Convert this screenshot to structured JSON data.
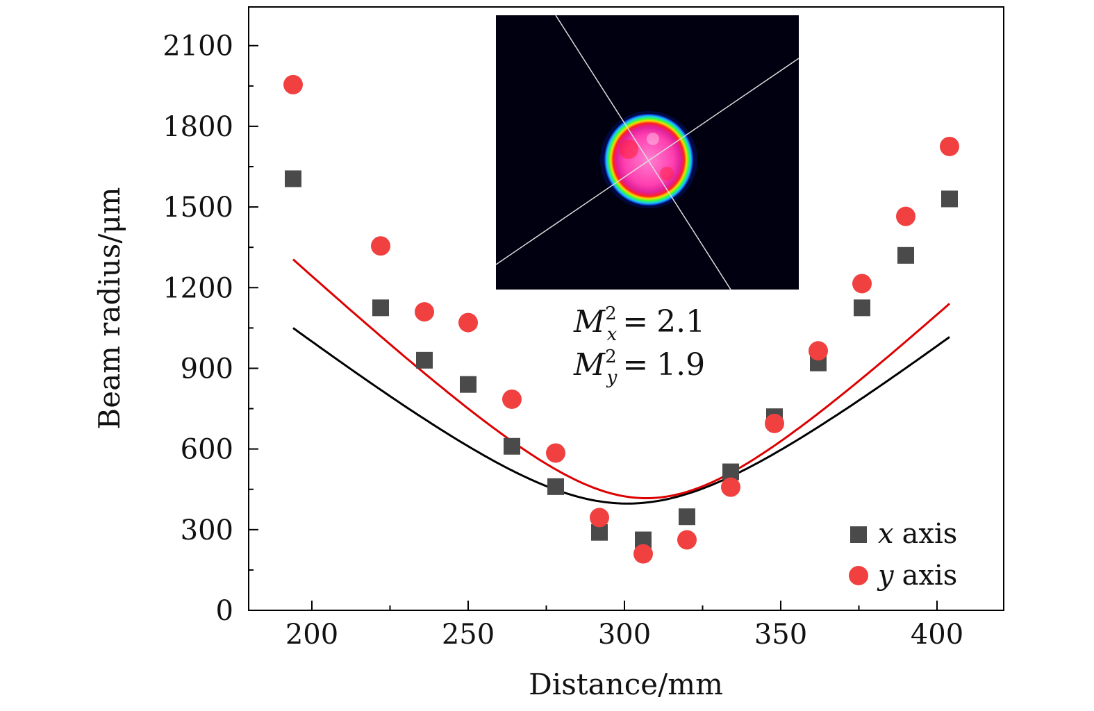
{
  "chart_data": {
    "type": "scatter",
    "xlabel": "Distance/mm",
    "ylabel": "Beam radius/μm",
    "xlim": [
      180,
      420
    ],
    "ylim": [
      0,
      2200
    ],
    "xticks": [
      200,
      250,
      300,
      350,
      400
    ],
    "yticks": [
      0,
      300,
      600,
      900,
      1200,
      1500,
      1800,
      2100
    ],
    "legend_position": "bottom-right",
    "series": [
      {
        "name": "x axis",
        "axis_letter": "x",
        "axis_word": "axis",
        "marker": "square",
        "color": "#4a4a4a",
        "x": [
          194,
          222,
          236,
          250,
          264,
          278,
          292,
          306,
          320,
          334,
          348,
          362,
          376,
          390,
          404
        ],
        "y": [
          1605,
          1125,
          930,
          840,
          610,
          460,
          290,
          262,
          348,
          515,
          720,
          920,
          1125,
          1320,
          1530
        ],
        "fit": {
          "color": "#000000",
          "w0": 397,
          "z0": 301,
          "zR": 43.7,
          "x_start": 194,
          "x_end": 404
        }
      },
      {
        "name": "y axis",
        "axis_letter": "y",
        "axis_word": "axis",
        "marker": "circle",
        "color": "#f04040",
        "x": [
          194,
          222,
          236,
          250,
          264,
          278,
          292,
          306,
          320,
          334,
          348,
          362,
          376,
          390,
          404
        ],
        "y": [
          1955,
          1355,
          1110,
          1070,
          785,
          585,
          345,
          210,
          262,
          458,
          695,
          965,
          1215,
          1465,
          1725
        ],
        "fit": {
          "color": "#dd0000",
          "w0": 417,
          "z0": 307,
          "zR": 38.1,
          "x_start": 194,
          "x_end": 404
        }
      }
    ],
    "annotations": [
      {
        "symbol": "M",
        "superscript": "2",
        "subscript": "x",
        "operator": "=",
        "value": "2.1"
      },
      {
        "symbol": "M",
        "superscript": "2",
        "subscript": "y",
        "operator": "=",
        "value": "1.9"
      }
    ]
  },
  "colors": {
    "inset_background": "#000010",
    "axis": "#000000"
  }
}
